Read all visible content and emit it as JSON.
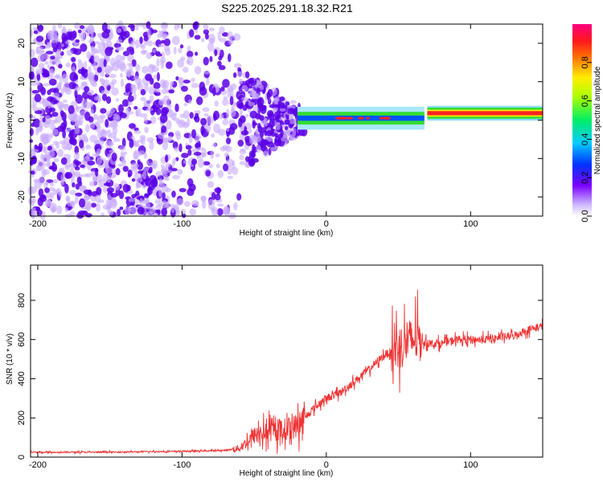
{
  "title": "S225.2025.291.18.32.R21",
  "colors": {
    "line": "#ee3333",
    "purple_dark": "#5a00e6",
    "purple_light": "#c8aaff",
    "band_green": "#33dd33",
    "band_yellow": "#ffee00",
    "band_red": "#ff2222"
  },
  "chart_data": [
    {
      "type": "heatmap",
      "title": "S225.2025.291.18.32.R21",
      "xlabel": "Height of straight line (km)",
      "ylabel": "Frequency (Hz)",
      "xlim": [
        -205,
        150
      ],
      "ylim": [
        -25,
        25
      ],
      "xticks": [
        -200,
        -100,
        0,
        100
      ],
      "yticks": [
        -20,
        -10,
        0,
        10,
        20
      ],
      "colorbar": {
        "label": "Normalized spectral amplitude",
        "range": [
          0.0,
          1.0
        ],
        "ticks": [
          0.0,
          0.2,
          0.4,
          0.6,
          0.8
        ],
        "tick_labels": [
          "0.0",
          "0.2",
          "0.4",
          "0.6",
          "0.8"
        ],
        "colormap": "white-purple-blue-cyan-green-yellow-red-magenta"
      },
      "regions": [
        {
          "name": "noise",
          "x_range": [
            -205,
            -60
          ],
          "freq_range": [
            -25,
            25
          ],
          "amplitude": 0.15
        },
        {
          "name": "transition",
          "x_range": [
            -60,
            -15
          ],
          "freq_range": [
            -10,
            10
          ],
          "amplitude": 0.25
        },
        {
          "name": "signal-band",
          "x_range": [
            -20,
            68
          ],
          "freq_center": 0.5,
          "freq_width": 1.5,
          "amplitude": 0.6
        },
        {
          "name": "signal-band-steady",
          "x_range": [
            70,
            150
          ],
          "freq_center": 1.8,
          "freq_width": 1.2,
          "amplitude": 0.95
        }
      ]
    },
    {
      "type": "line",
      "xlabel": "Height of straight line (km)",
      "ylabel": "SNR (10 * v/v)",
      "xlim": [
        -205,
        150
      ],
      "ylim": [
        0,
        980
      ],
      "xticks": [
        -200,
        -100,
        0,
        100
      ],
      "yticks": [
        0,
        200,
        400,
        600,
        800
      ],
      "series": [
        {
          "name": "SNR",
          "x": [
            -205,
            -180,
            -150,
            -120,
            -90,
            -70,
            -60,
            -50,
            -40,
            -30,
            -20,
            -10,
            0,
            10,
            20,
            30,
            40,
            50,
            60,
            65,
            70,
            80,
            90,
            100,
            110,
            120,
            130,
            140,
            150
          ],
          "y": [
            25,
            25,
            25,
            28,
            30,
            35,
            45,
            110,
            130,
            140,
            160,
            240,
            300,
            330,
            390,
            450,
            520,
            560,
            600,
            600,
            580,
            580,
            600,
            600,
            600,
            610,
            620,
            650,
            670
          ]
        }
      ]
    }
  ]
}
